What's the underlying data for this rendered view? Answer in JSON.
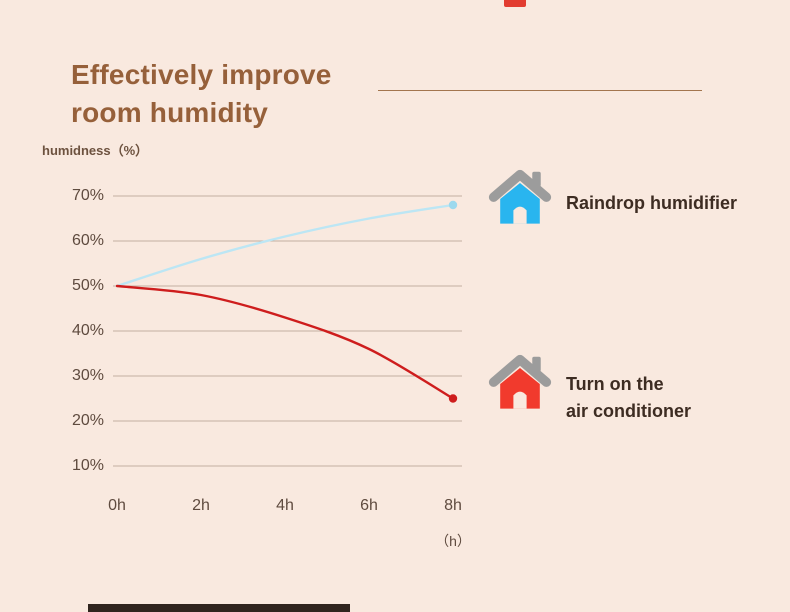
{
  "decor": {
    "top_tab_color": "#e23c30",
    "bottom_bar_color": "#30241e"
  },
  "header": {
    "title_line1": "Effectively improve",
    "title_line2": "room humidity",
    "title_color": "#96603a"
  },
  "chart_data": {
    "type": "line",
    "title": "Effectively improve room humidity",
    "ylabel": "humidness（%）",
    "xlabel": "（h）",
    "x": [
      0,
      2,
      4,
      6,
      8
    ],
    "x_tick_labels": [
      "0h",
      "2h",
      "4h",
      "6h",
      "8h"
    ],
    "y_ticks": [
      70,
      60,
      50,
      40,
      30,
      20,
      10
    ],
    "y_tick_labels": [
      "70%",
      "60%",
      "50%",
      "40%",
      "30%",
      "20%",
      "10%"
    ],
    "ylim": [
      10,
      70
    ],
    "xlim": [
      0,
      8
    ],
    "grid": true,
    "grid_color": "#c2b0a1",
    "legend_position": "right",
    "series": [
      {
        "name": "Raindrop humidifier",
        "color": "#bce6f4",
        "dot_color": "#9cd9ee",
        "values": [
          50,
          56,
          61,
          65,
          68
        ]
      },
      {
        "name": "Turn on the air conditioner",
        "color": "#ce1d1d",
        "dot_color": "#ce1d1d",
        "values": [
          50,
          48,
          43,
          36,
          25
        ]
      }
    ]
  },
  "legend": [
    {
      "lines": [
        "Raindrop humidifier"
      ],
      "house_color": "#29b5ef",
      "roof_color": "#9c9c9c"
    },
    {
      "lines": [
        "Turn on the",
        "air conditioner"
      ],
      "house_color": "#f13a2d",
      "roof_color": "#9c9c9c"
    }
  ]
}
